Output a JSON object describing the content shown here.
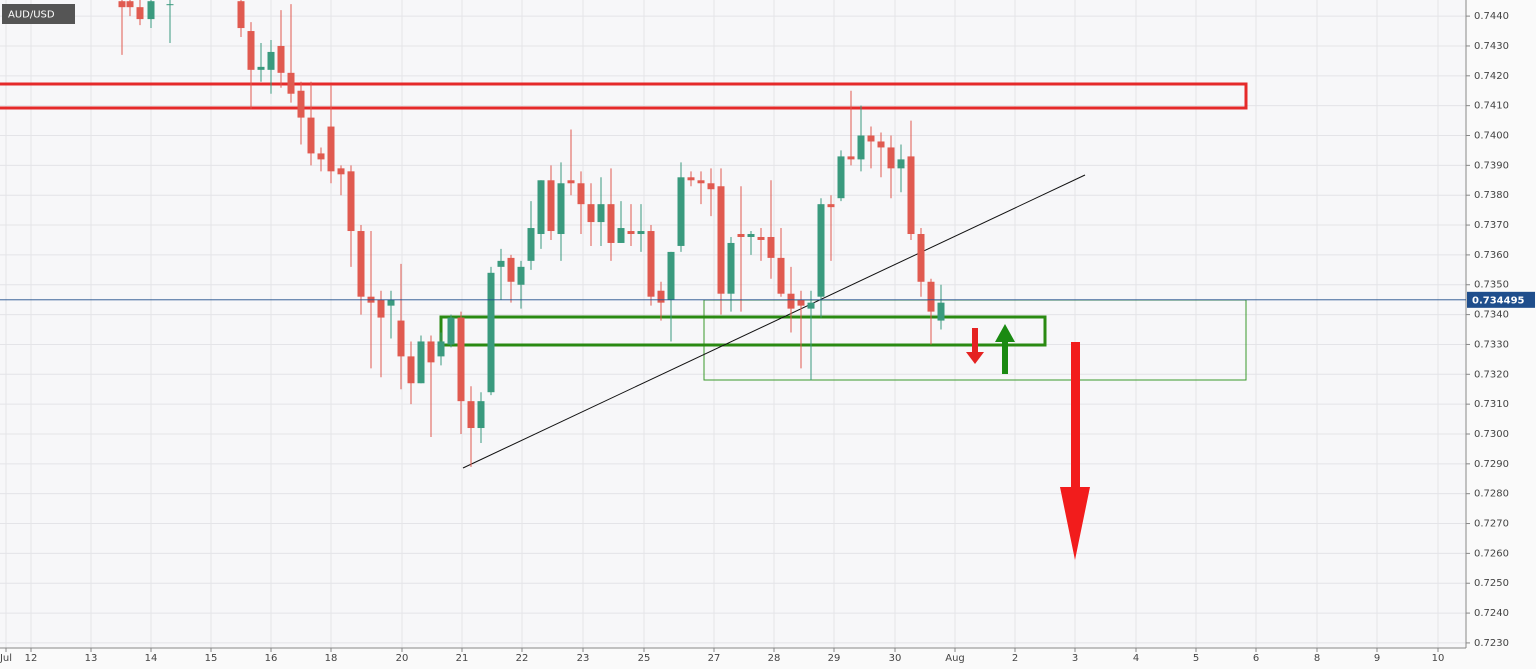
{
  "chart_data": {
    "type": "candlestick",
    "symbol": "AUD/USD",
    "x": [
      12.2,
      13,
      14,
      15.1,
      17,
      24.1,
      25.1,
      26.1,
      27.1,
      28.1,
      29.1,
      30.1,
      31.1,
      32.1,
      33.1,
      34.1,
      35.1,
      36.1,
      37.1,
      38.1,
      39.1,
      40.1,
      41.1,
      42.1,
      43.1,
      44.1,
      45.1,
      46.1,
      47.1,
      48.1,
      49.1,
      50.1,
      51.1,
      52.1,
      53.1,
      54.1,
      55.1,
      56.1,
      57.1,
      58.1,
      59.1,
      60.1,
      61.1,
      62.1,
      63.1,
      64.1,
      65.1,
      66.1,
      67.1,
      68.1,
      69.1,
      70.1,
      71.1,
      72.1,
      73.1,
      74.1,
      75.1,
      76.1,
      77.1,
      78.1,
      79.1,
      80.1,
      81.1,
      82.1,
      83.1,
      84.1,
      85.1,
      86.1,
      87.1,
      88.1,
      89.1,
      90.1,
      91.1,
      92.1,
      93.1,
      94.1
    ],
    "open": [
      0.7445,
      0.7445,
      0.7443,
      0.7439,
      0.7444,
      0.7445,
      0.7435,
      0.7422,
      0.7422,
      0.743,
      0.7421,
      0.7415,
      0.7406,
      0.7394,
      0.7403,
      0.7389,
      0.7388,
      0.7368,
      0.7346,
      0.7345,
      0.7343,
      0.7338,
      0.7326,
      0.7317,
      0.7331,
      0.7326,
      0.733,
      0.7339,
      0.7311,
      0.7302,
      0.7314,
      0.7356,
      0.7359,
      0.735,
      0.7358,
      0.7367,
      0.7385,
      0.7367,
      0.7385,
      0.7384,
      0.7377,
      0.7371,
      0.7377,
      0.7364,
      0.7368,
      0.7367,
      0.7368,
      0.7348,
      0.7345,
      0.7363,
      0.7386,
      0.7385,
      0.7384,
      0.7383,
      0.7347,
      0.7367,
      0.7366,
      0.7366,
      0.7366,
      0.7359,
      0.7347,
      0.7345,
      0.7342,
      0.7346,
      0.7377,
      0.7379,
      0.7393,
      0.7392,
      0.74,
      0.7398,
      0.7396,
      0.7389,
      0.7393,
      0.7367,
      0.7351,
      0.7338
    ],
    "high": [
      0.7448,
      0.7448,
      0.7446,
      0.7447,
      0.7448,
      0.7448,
      0.7438,
      0.7431,
      0.7432,
      0.7442,
      0.7444,
      0.7418,
      0.7418,
      0.7396,
      0.7417,
      0.739,
      0.739,
      0.737,
      0.7368,
      0.7348,
      0.7348,
      0.7357,
      0.7331,
      0.7333,
      0.7333,
      0.7334,
      0.734,
      0.7341,
      0.7316,
      0.7314,
      0.7356,
      0.7362,
      0.736,
      0.7358,
      0.7378,
      0.7385,
      0.739,
      0.7391,
      0.7402,
      0.7388,
      0.7384,
      0.7386,
      0.7389,
      0.7378,
      0.7377,
      0.7377,
      0.737,
      0.7351,
      0.7361,
      0.7391,
      0.7388,
      0.7388,
      0.7389,
      0.7389,
      0.7366,
      0.7383,
      0.7368,
      0.7369,
      0.7385,
      0.7369,
      0.7356,
      0.7348,
      0.7348,
      0.7379,
      0.738,
      0.7395,
      0.7415,
      0.741,
      0.7403,
      0.7401,
      0.74,
      0.7397,
      0.7405,
      0.7369,
      0.7352,
      0.735
    ],
    "low": [
      0.7427,
      0.744,
      0.7437,
      0.7436,
      0.7431,
      0.7433,
      0.7409,
      0.7418,
      0.7414,
      0.7416,
      0.7411,
      0.7397,
      0.739,
      0.7388,
      0.7384,
      0.738,
      0.7356,
      0.734,
      0.7322,
      0.7319,
      0.7332,
      0.7315,
      0.731,
      0.7317,
      0.7299,
      0.7323,
      0.7329,
      0.73,
      0.7289,
      0.7297,
      0.7313,
      0.7345,
      0.7344,
      0.7342,
      0.7355,
      0.7362,
      0.7365,
      0.7358,
      0.738,
      0.7367,
      0.7363,
      0.7363,
      0.7358,
      0.7364,
      0.7363,
      0.7361,
      0.7343,
      0.7338,
      0.7331,
      0.7361,
      0.7383,
      0.7377,
      0.7373,
      0.734,
      0.7341,
      0.7341,
      0.736,
      0.7358,
      0.7352,
      0.7346,
      0.7334,
      0.7322,
      0.7318,
      0.7339,
      0.7358,
      0.7378,
      0.739,
      0.7388,
      0.7389,
      0.7386,
      0.7379,
      0.7381,
      0.7365,
      0.7346,
      0.733,
      0.7335
    ],
    "close": [
      0.7443,
      0.7443,
      0.7439,
      0.7445,
      0.7444,
      0.7436,
      0.7422,
      0.7423,
      0.7428,
      0.7421,
      0.7414,
      0.7406,
      0.7394,
      0.7392,
      0.7388,
      0.7387,
      0.7368,
      0.7346,
      0.7344,
      0.7339,
      0.7345,
      0.7326,
      0.7317,
      0.7331,
      0.7324,
      0.7331,
      0.7339,
      0.7311,
      0.7302,
      0.7311,
      0.7354,
      0.7358,
      0.7351,
      0.7356,
      0.7369,
      0.7385,
      0.7368,
      0.7384,
      0.7384,
      0.7377,
      0.7371,
      0.7377,
      0.7364,
      0.7369,
      0.7367,
      0.7368,
      0.7346,
      0.7344,
      0.7361,
      0.7386,
      0.7385,
      0.7384,
      0.7382,
      0.7347,
      0.7364,
      0.7366,
      0.7367,
      0.7365,
      0.7359,
      0.7347,
      0.7342,
      0.7343,
      0.7344,
      0.7377,
      0.7376,
      0.7393,
      0.7392,
      0.74,
      0.7398,
      0.7396,
      0.7389,
      0.7392,
      0.7367,
      0.7351,
      0.7341,
      0.7344
    ],
    "up_color": "#3a9a7e",
    "down_color": "#e05a50",
    "last_price": 0.734495,
    "last_price_color": "#1f4e8c",
    "xlim": [
      0,
      146.6
    ],
    "xticks": [
      {
        "value": 0.6,
        "label": "Jul"
      },
      {
        "value": 3.1,
        "label": "12"
      },
      {
        "value": 9.1,
        "label": "13"
      },
      {
        "value": 15.1,
        "label": "14"
      },
      {
        "value": 21.1,
        "label": "15"
      },
      {
        "value": 27.1,
        "label": "16"
      },
      {
        "value": 33.1,
        "label": "18"
      },
      {
        "value": 40.2,
        "label": "20"
      },
      {
        "value": 46.2,
        "label": "21"
      },
      {
        "value": 52.2,
        "label": "22"
      },
      {
        "value": 58.3,
        "label": "23"
      },
      {
        "value": 64.4,
        "label": "25"
      },
      {
        "value": 71.4,
        "label": "27"
      },
      {
        "value": 77.4,
        "label": "28"
      },
      {
        "value": 83.4,
        "label": "29"
      },
      {
        "value": 89.5,
        "label": "30"
      },
      {
        "value": 95.5,
        "label": "Aug"
      },
      {
        "value": 101.5,
        "label": "2"
      },
      {
        "value": 107.5,
        "label": "3"
      },
      {
        "value": 113.6,
        "label": "4"
      },
      {
        "value": 119.6,
        "label": "5"
      },
      {
        "value": 125.6,
        "label": "6"
      },
      {
        "value": 131.7,
        "label": "8"
      },
      {
        "value": 137.7,
        "label": "9"
      },
      {
        "value": 143.8,
        "label": "10"
      }
    ],
    "ylim": [
      0.72283,
      0.74454
    ],
    "yticks": [
      {
        "value": 0.723,
        "label": "0.7230"
      },
      {
        "value": 0.724,
        "label": "0.7240"
      },
      {
        "value": 0.725,
        "label": "0.7250"
      },
      {
        "value": 0.726,
        "label": "0.7260"
      },
      {
        "value": 0.727,
        "label": "0.7270"
      },
      {
        "value": 0.728,
        "label": "0.7280"
      },
      {
        "value": 0.729,
        "label": "0.7290"
      },
      {
        "value": 0.73,
        "label": "0.7300"
      },
      {
        "value": 0.731,
        "label": "0.7310"
      },
      {
        "value": 0.732,
        "label": "0.7320"
      },
      {
        "value": 0.733,
        "label": "0.7330"
      },
      {
        "value": 0.734,
        "label": "0.7340"
      },
      {
        "value": 0.735,
        "label": "0.7350"
      },
      {
        "value": 0.736,
        "label": "0.7360"
      },
      {
        "value": 0.737,
        "label": "0.7370"
      },
      {
        "value": 0.738,
        "label": "0.7380"
      },
      {
        "value": 0.739,
        "label": "0.7390"
      },
      {
        "value": 0.74,
        "label": "0.7400"
      },
      {
        "value": 0.741,
        "label": "0.7410"
      },
      {
        "value": 0.742,
        "label": "0.7420"
      },
      {
        "value": 0.743,
        "label": "0.7430"
      },
      {
        "value": 0.744,
        "label": "0.7440"
      }
    ],
    "grid": true
  }
}
